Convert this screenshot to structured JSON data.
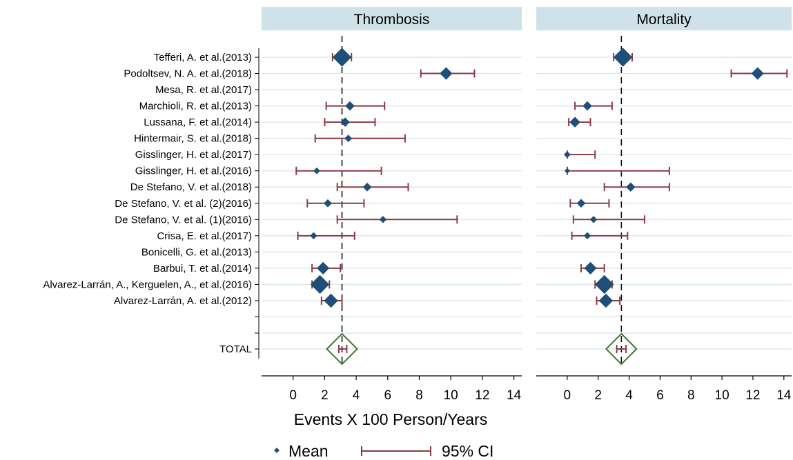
{
  "chart_data": {
    "type": "forest",
    "xlabel": "Events X 100 Person/Years",
    "xlim": [
      -2,
      14.5
    ],
    "xticks": [
      0,
      2,
      4,
      6,
      8,
      10,
      12,
      14
    ],
    "colors": {
      "panel_header_bg": "#cfe2ea",
      "gridline": "#dde9ee",
      "marker": "#1f4e79",
      "ci": "#8b3a46",
      "total_diamond": "#3f7a2e",
      "axis": "#000000"
    },
    "legend": {
      "placement": "bottom",
      "mean_label": "Mean",
      "ci_label": "95% CI"
    },
    "studies": [
      "Tefferi, A. et al.(2013)",
      "Podoltsev, N. A. et al.(2018)",
      "Mesa, R. et al.(2017)",
      "Marchioli, R. et al.(2013)",
      "Lussana, F. et al.(2014)",
      "Hintermair, S. et al.(2018)",
      "Gisslinger, H. et al.(2017)",
      "Gisslinger, H. et al.(2016)",
      "De Stefano, V. et al.(2018)",
      "De Stefano, V. et al. (2)(2016)",
      "De Stefano, V. et al. (1)(2016)",
      "Crisa, E. et al.(2017)",
      "Bonicelli, G. et al.(2013)",
      "Barbui, T. et al.(2014)",
      "Alvarez-Larrán, A., Kerguelen, A., et al.(2016)",
      "Alvarez-Larrán, A. et al.(2012)"
    ],
    "total_label": "TOTAL",
    "panels": [
      {
        "title": "Thrombosis",
        "reference": 3.1,
        "rows": [
          {
            "mean": 3.1,
            "lo": 2.5,
            "hi": 3.7,
            "weight": 5
          },
          {
            "mean": 9.7,
            "lo": 8.1,
            "hi": 11.5,
            "weight": 3
          },
          null,
          {
            "mean": 3.6,
            "lo": 2.1,
            "hi": 5.8,
            "weight": 2
          },
          {
            "mean": 3.3,
            "lo": 2.0,
            "hi": 5.2,
            "weight": 2
          },
          {
            "mean": 3.5,
            "lo": 1.4,
            "hi": 7.1,
            "weight": 1.4
          },
          null,
          {
            "mean": 1.5,
            "lo": 0.2,
            "hi": 5.6,
            "weight": 1.2
          },
          {
            "mean": 4.7,
            "lo": 2.8,
            "hi": 7.3,
            "weight": 1.8
          },
          {
            "mean": 2.2,
            "lo": 0.9,
            "hi": 4.5,
            "weight": 1.6
          },
          {
            "mean": 5.7,
            "lo": 2.8,
            "hi": 10.4,
            "weight": 1.3
          },
          {
            "mean": 1.3,
            "lo": 0.3,
            "hi": 3.9,
            "weight": 1.3
          },
          null,
          {
            "mean": 1.9,
            "lo": 1.2,
            "hi": 3.0,
            "weight": 3
          },
          {
            "mean": 1.7,
            "lo": 1.2,
            "hi": 2.3,
            "weight": 5
          },
          {
            "mean": 2.4,
            "lo": 1.8,
            "hi": 3.1,
            "weight": 3.5
          }
        ],
        "total": {
          "mean": 3.1,
          "lo": 2.9,
          "hi": 3.4
        }
      },
      {
        "title": "Mortality",
        "reference": 3.5,
        "rows": [
          {
            "mean": 3.6,
            "lo": 3.0,
            "hi": 4.2,
            "weight": 5
          },
          {
            "mean": 12.3,
            "lo": 10.6,
            "hi": 14.2,
            "weight": 3
          },
          null,
          {
            "mean": 1.3,
            "lo": 0.5,
            "hi": 2.9,
            "weight": 2
          },
          {
            "mean": 0.5,
            "lo": 0.1,
            "hi": 1.5,
            "weight": 2.4
          },
          null,
          {
            "mean": 0.0,
            "lo": 0.0,
            "hi": 1.8,
            "weight": 1.2
          },
          {
            "mean": 0.0,
            "lo": 0.0,
            "hi": 6.6,
            "weight": 0.8
          },
          {
            "mean": 4.1,
            "lo": 2.4,
            "hi": 6.6,
            "weight": 2
          },
          {
            "mean": 0.9,
            "lo": 0.2,
            "hi": 2.7,
            "weight": 1.8
          },
          {
            "mean": 1.7,
            "lo": 0.4,
            "hi": 5.0,
            "weight": 1.3
          },
          {
            "mean": 1.3,
            "lo": 0.3,
            "hi": 3.9,
            "weight": 1.3
          },
          null,
          {
            "mean": 1.5,
            "lo": 0.9,
            "hi": 2.4,
            "weight": 3
          },
          {
            "mean": 2.4,
            "lo": 1.8,
            "hi": 2.9,
            "weight": 5
          },
          {
            "mean": 2.5,
            "lo": 1.9,
            "hi": 3.4,
            "weight": 3.5
          }
        ],
        "total": {
          "mean": 3.5,
          "lo": 3.2,
          "hi": 3.8
        }
      }
    ]
  }
}
